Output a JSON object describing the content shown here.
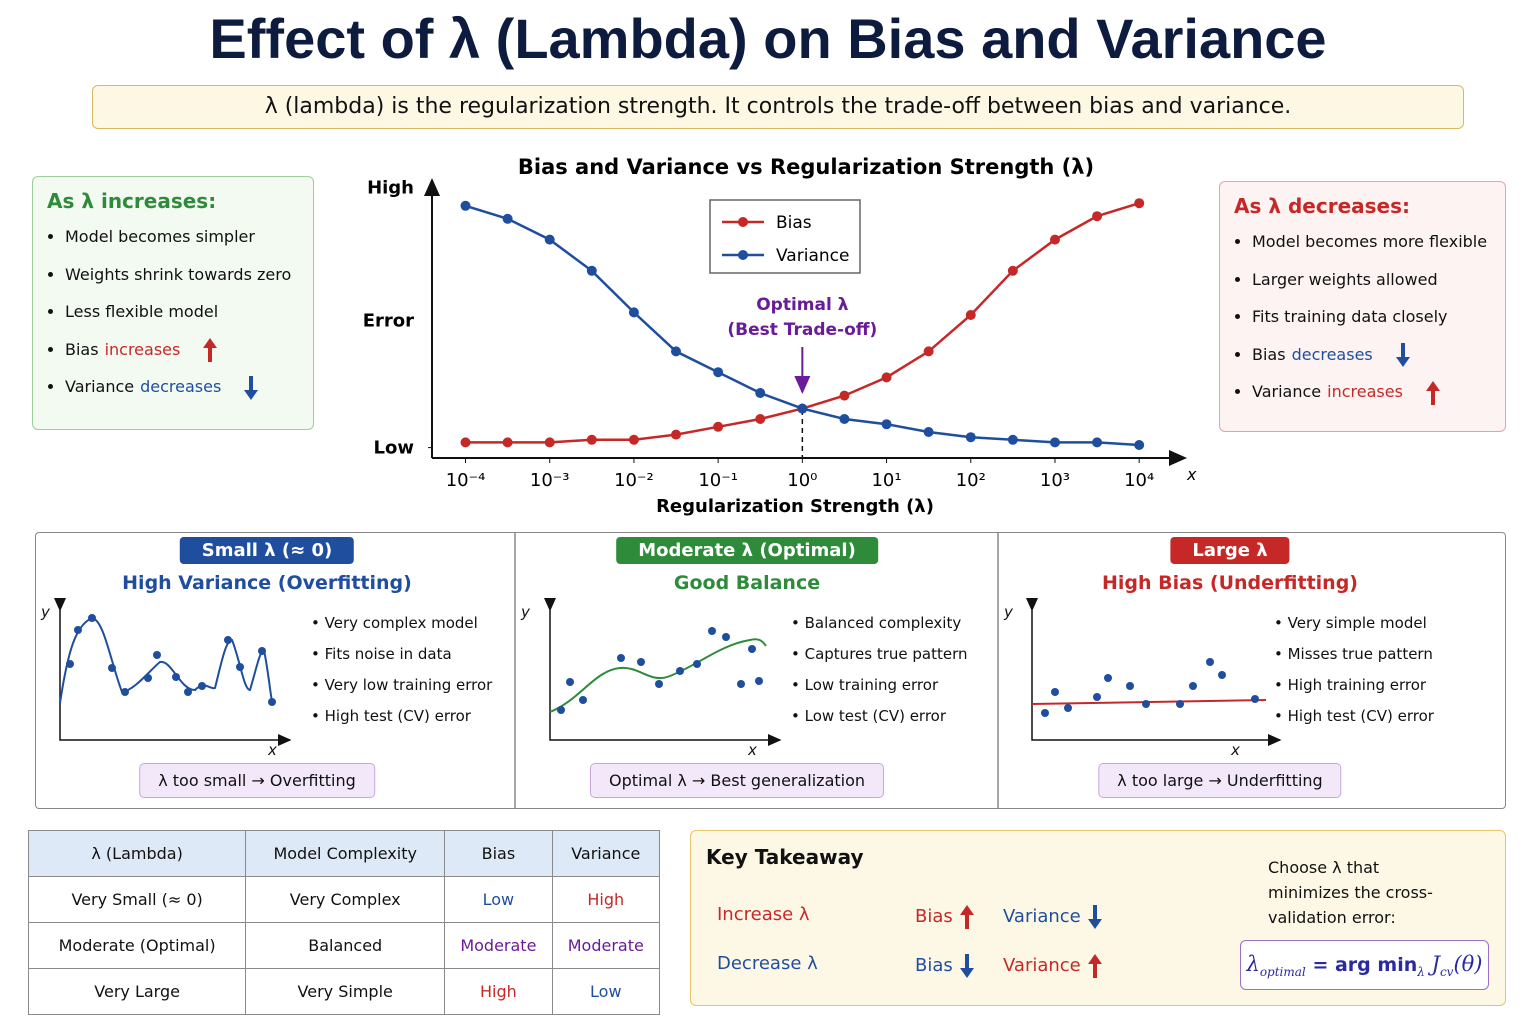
{
  "title": "Effect of λ (Lambda) on Bias and Variance",
  "subtitle": "λ (lambda) is the regularization strength. It controls the trade-off between bias and variance.",
  "left_panel": {
    "heading": "As λ increases:",
    "items": [
      {
        "text": "Model becomes simpler"
      },
      {
        "text": "Weights shrink towards zero"
      },
      {
        "text": "Less flexible model"
      },
      {
        "text": "Bias",
        "highlight": "increases"
      },
      {
        "text": "Variance",
        "highlight": "decreases"
      }
    ]
  },
  "right_panel": {
    "heading": "As λ decreases:",
    "items": [
      {
        "text": "Model becomes more flexible"
      },
      {
        "text": "Larger weights allowed"
      },
      {
        "text": "Fits training data closely"
      },
      {
        "text": "Bias",
        "highlight": "decreases"
      },
      {
        "text": "Variance",
        "highlight": "increases"
      }
    ]
  },
  "chart_data": {
    "type": "line",
    "title": "Bias and Variance vs Regularization Strength (λ)",
    "x_label": "Regularization Strength (λ)",
    "x_axis_end": "x",
    "y_label": "Error",
    "xscale": "log",
    "legend": "top center",
    "x": [
      0.0001,
      0.000316,
      0.001,
      0.00316,
      0.01,
      0.0316,
      0.1,
      0.316,
      1,
      3.16,
      10,
      31.6,
      100,
      316,
      1000,
      3160,
      10000
    ],
    "series": [
      {
        "name": "Bias",
        "color": "#c62828",
        "values": [
          0.02,
          0.02,
          0.02,
          0.03,
          0.03,
          0.05,
          0.08,
          0.11,
          0.15,
          0.2,
          0.27,
          0.37,
          0.51,
          0.68,
          0.8,
          0.89,
          0.94
        ]
      },
      {
        "name": "Variance",
        "color": "#1f4e9e",
        "values": [
          0.93,
          0.88,
          0.8,
          0.68,
          0.52,
          0.37,
          0.29,
          0.21,
          0.15,
          0.11,
          0.09,
          0.06,
          0.04,
          0.03,
          0.02,
          0.02,
          0.01
        ]
      }
    ],
    "xlim": [
      4e-05,
      35000
    ],
    "xticks": [
      {
        "value": 0.0001,
        "label": "10⁻⁴"
      },
      {
        "value": 0.001,
        "label": "10⁻³"
      },
      {
        "value": 0.01,
        "label": "10⁻²"
      },
      {
        "value": 0.1,
        "label": "10⁻¹"
      },
      {
        "value": 1,
        "label": "10⁰"
      },
      {
        "value": 10,
        "label": "10¹"
      },
      {
        "value": 100,
        "label": "10²"
      },
      {
        "value": 1000,
        "label": "10³"
      },
      {
        "value": 10000,
        "label": "10⁴"
      }
    ],
    "ylim": [
      -0.04,
      1.01
    ],
    "yticks": [
      {
        "value": 0,
        "label": "Low"
      },
      {
        "value": 1,
        "label": "High"
      }
    ],
    "annotation": {
      "x": 1,
      "lines": [
        "Optimal λ",
        "(Best Trade-off)"
      ],
      "color": "#6a1b9a"
    }
  },
  "cases": [
    {
      "badge": "Small λ (≈ 0)",
      "heading": "High Variance (Overfitting)",
      "color": "#1f4e9e",
      "y_axis": "y",
      "x_axis": "x",
      "bullets": [
        "Very complex model",
        "Fits noise in data",
        "Very low training error",
        "High test (CV) error"
      ],
      "footer": "λ too small → Overfitting"
    },
    {
      "badge": "Moderate λ (Optimal)",
      "heading": "Good Balance",
      "color": "#2e8b3a",
      "y_axis": "y",
      "x_axis": "x",
      "bullets": [
        "Balanced complexity",
        "Captures true pattern",
        "Low training error",
        "Low test (CV) error"
      ],
      "footer": "Optimal λ → Best generalization"
    },
    {
      "badge": "Large λ",
      "heading": "High Bias (Underfitting)",
      "color": "#c62828",
      "y_axis": "y",
      "x_axis": "x",
      "bullets": [
        "Very simple model",
        "Misses true pattern",
        "High training error",
        "High test (CV) error"
      ],
      "footer": "λ too large → Underfitting"
    }
  ],
  "table": {
    "headers": [
      "λ (Lambda)",
      "Model Complexity",
      "Bias",
      "Variance"
    ],
    "rows": [
      [
        "Very Small (≈ 0)",
        "Very Complex",
        "Low",
        "High"
      ],
      [
        "Moderate (Optimal)",
        "Balanced",
        "Moderate",
        "Moderate"
      ],
      [
        "Very Large",
        "Very Simple",
        "High",
        "Low"
      ]
    ]
  },
  "takeaway": {
    "heading": "Key Takeaway",
    "rows": [
      {
        "action": "Increase λ",
        "bias": "Bias",
        "variance": "Variance"
      },
      {
        "action": "Decrease λ",
        "bias": "Bias",
        "variance": "Variance"
      }
    ],
    "note": "Choose λ that minimizes the cross-validation error:",
    "formula": {
      "lhs": "λ",
      "lhs_sub": "optimal",
      "op": "= arg min",
      "op_sub": "λ",
      "fn": "J",
      "fn_sub": "cv",
      "arg": "(θ)"
    }
  }
}
